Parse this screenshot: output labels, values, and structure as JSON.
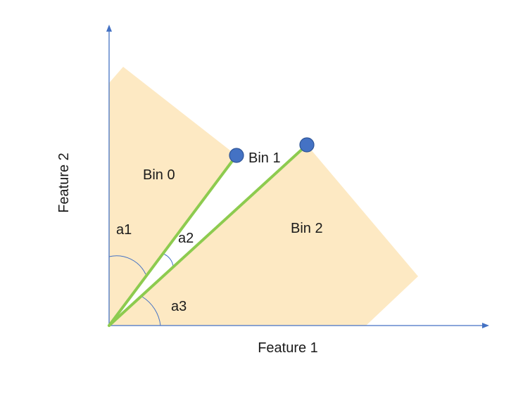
{
  "diagram": {
    "axes": {
      "x_label": "Feature 1",
      "y_label": "Feature 2"
    },
    "bins": [
      {
        "label": "Bin 0"
      },
      {
        "label": "Bin 1"
      },
      {
        "label": "Bin 2"
      }
    ],
    "angles": [
      {
        "label": "a1"
      },
      {
        "label": "a2"
      },
      {
        "label": "a3"
      }
    ],
    "colors": {
      "region_fill": "#FDE9C3",
      "ray": "#8DCB4F",
      "axis": "#4472C4",
      "point": "#4472C4"
    }
  }
}
